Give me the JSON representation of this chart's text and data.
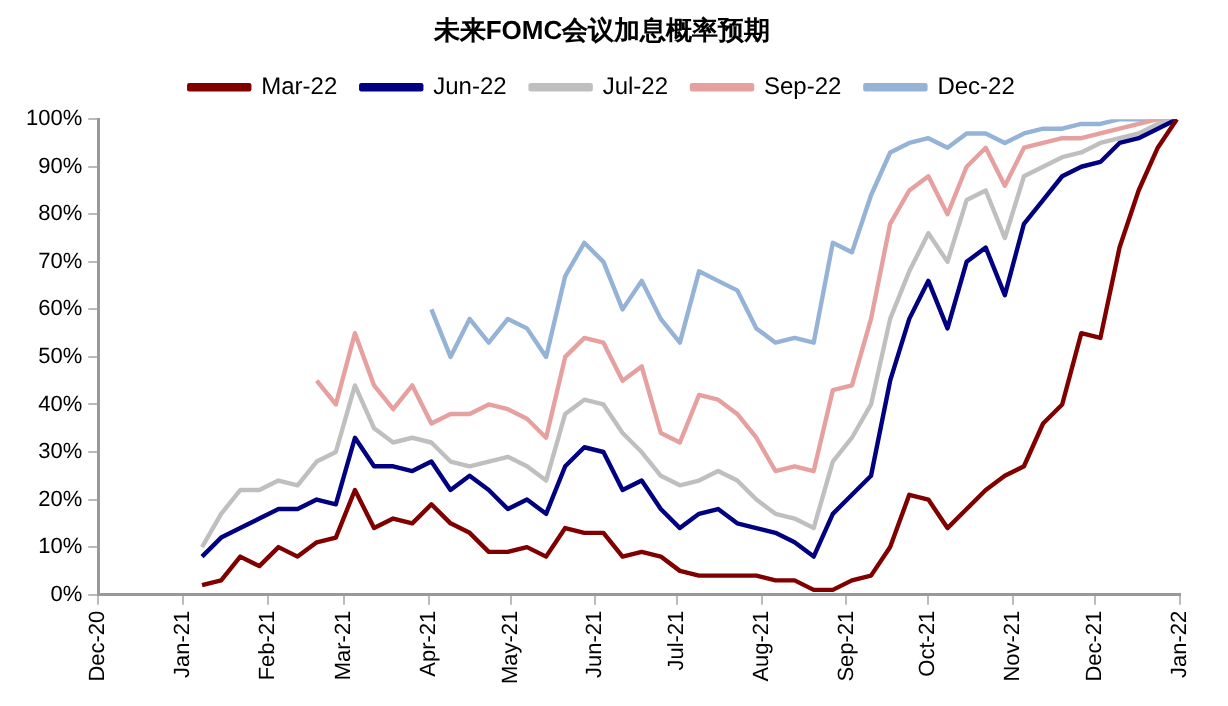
{
  "chart_data": {
    "type": "line",
    "title": "未来FOMC会议加息概率预期",
    "x": [
      "2021-01-08",
      "2021-01-15",
      "2021-01-22",
      "2021-01-29",
      "2021-02-05",
      "2021-02-12",
      "2021-02-19",
      "2021-02-26",
      "2021-03-05",
      "2021-03-12",
      "2021-03-19",
      "2021-03-26",
      "2021-04-02",
      "2021-04-09",
      "2021-04-16",
      "2021-04-23",
      "2021-04-30",
      "2021-05-07",
      "2021-05-14",
      "2021-05-21",
      "2021-05-28",
      "2021-06-04",
      "2021-06-11",
      "2021-06-18",
      "2021-06-25",
      "2021-07-02",
      "2021-07-09",
      "2021-07-16",
      "2021-07-23",
      "2021-07-30",
      "2021-08-06",
      "2021-08-13",
      "2021-08-20",
      "2021-08-27",
      "2021-09-03",
      "2021-09-10",
      "2021-09-17",
      "2021-09-24",
      "2021-10-01",
      "2021-10-08",
      "2021-10-15",
      "2021-10-22",
      "2021-10-29",
      "2021-11-05",
      "2021-11-12",
      "2021-11-19",
      "2021-11-26",
      "2021-12-03",
      "2021-12-10",
      "2021-12-17",
      "2021-12-24",
      "2021-12-31"
    ],
    "series": [
      {
        "name": "Mar-22",
        "color": "#800000",
        "values": [
          2,
          3,
          8,
          6,
          10,
          8,
          11,
          12,
          22,
          14,
          16,
          15,
          19,
          15,
          13,
          9,
          9,
          10,
          8,
          14,
          13,
          13,
          8,
          9,
          8,
          5,
          4,
          4,
          4,
          4,
          3,
          3,
          1,
          1,
          3,
          4,
          10,
          21,
          20,
          14,
          18,
          22,
          25,
          27,
          36,
          40,
          55,
          54,
          73,
          85,
          94,
          100
        ]
      },
      {
        "name": "Jun-22",
        "color": "#000080",
        "values": [
          8,
          12,
          14,
          16,
          18,
          18,
          20,
          19,
          33,
          27,
          27,
          26,
          28,
          22,
          25,
          22,
          18,
          20,
          17,
          27,
          31,
          30,
          22,
          24,
          18,
          14,
          17,
          18,
          15,
          14,
          13,
          11,
          8,
          17,
          21,
          25,
          45,
          58,
          66,
          56,
          70,
          73,
          63,
          78,
          83,
          88,
          90,
          91,
          95,
          96,
          98,
          100
        ]
      },
      {
        "name": "Jul-22",
        "color": "#bfbfbf",
        "values": [
          10,
          17,
          22,
          22,
          24,
          23,
          28,
          30,
          44,
          35,
          32,
          33,
          32,
          28,
          27,
          28,
          29,
          27,
          24,
          38,
          41,
          40,
          34,
          30,
          25,
          23,
          24,
          26,
          24,
          20,
          17,
          16,
          14,
          28,
          33,
          40,
          58,
          68,
          76,
          70,
          83,
          85,
          75,
          88,
          90,
          92,
          93,
          95,
          96,
          97,
          99,
          100
        ]
      },
      {
        "name": "Sep-22",
        "color": "#e6a0a0",
        "values": [
          null,
          null,
          null,
          null,
          null,
          null,
          45,
          40,
          55,
          44,
          39,
          44,
          36,
          38,
          38,
          40,
          39,
          37,
          33,
          50,
          54,
          53,
          45,
          48,
          34,
          32,
          42,
          41,
          38,
          33,
          26,
          27,
          26,
          43,
          44,
          58,
          78,
          85,
          88,
          80,
          90,
          94,
          86,
          94,
          95,
          96,
          96,
          97,
          98,
          99,
          100,
          100
        ]
      },
      {
        "name": "Dec-22",
        "color": "#95b3d7",
        "values": [
          null,
          null,
          null,
          null,
          null,
          null,
          null,
          null,
          null,
          null,
          null,
          null,
          60,
          50,
          58,
          53,
          58,
          56,
          50,
          67,
          74,
          70,
          60,
          66,
          58,
          53,
          68,
          66,
          64,
          56,
          53,
          54,
          53,
          74,
          72,
          84,
          93,
          95,
          96,
          94,
          97,
          97,
          95,
          97,
          98,
          98,
          99,
          99,
          100,
          100,
          100,
          100
        ]
      }
    ],
    "xlim": [
      "2020-12-01",
      "2022-01-01"
    ],
    "xticks": [
      {
        "value": "2020-12-01",
        "label": "Dec-20"
      },
      {
        "value": "2021-01-01",
        "label": "Jan-21"
      },
      {
        "value": "2021-02-01",
        "label": "Feb-21"
      },
      {
        "value": "2021-03-01",
        "label": "Mar-21"
      },
      {
        "value": "2021-04-01",
        "label": "Apr-21"
      },
      {
        "value": "2021-05-01",
        "label": "May-21"
      },
      {
        "value": "2021-06-01",
        "label": "Jun-21"
      },
      {
        "value": "2021-07-01",
        "label": "Jul-21"
      },
      {
        "value": "2021-08-01",
        "label": "Aug-21"
      },
      {
        "value": "2021-09-01",
        "label": "Sep-21"
      },
      {
        "value": "2021-10-01",
        "label": "Oct-21"
      },
      {
        "value": "2021-11-01",
        "label": "Nov-21"
      },
      {
        "value": "2021-12-01",
        "label": "Dec-21"
      },
      {
        "value": "2022-01-01",
        "label": "Jan-22"
      }
    ],
    "ylim": [
      0,
      100
    ],
    "yticks": [
      {
        "value": 0,
        "label": "0%"
      },
      {
        "value": 10,
        "label": "10%"
      },
      {
        "value": 20,
        "label": "20%"
      },
      {
        "value": 30,
        "label": "30%"
      },
      {
        "value": 40,
        "label": "40%"
      },
      {
        "value": 50,
        "label": "50%"
      },
      {
        "value": 60,
        "label": "60%"
      },
      {
        "value": 70,
        "label": "70%"
      },
      {
        "value": 80,
        "label": "80%"
      },
      {
        "value": 90,
        "label": "90%"
      },
      {
        "value": 100,
        "label": "100%"
      }
    ],
    "grid": false,
    "legend": "top",
    "marker": "none",
    "line_style": "solid"
  }
}
